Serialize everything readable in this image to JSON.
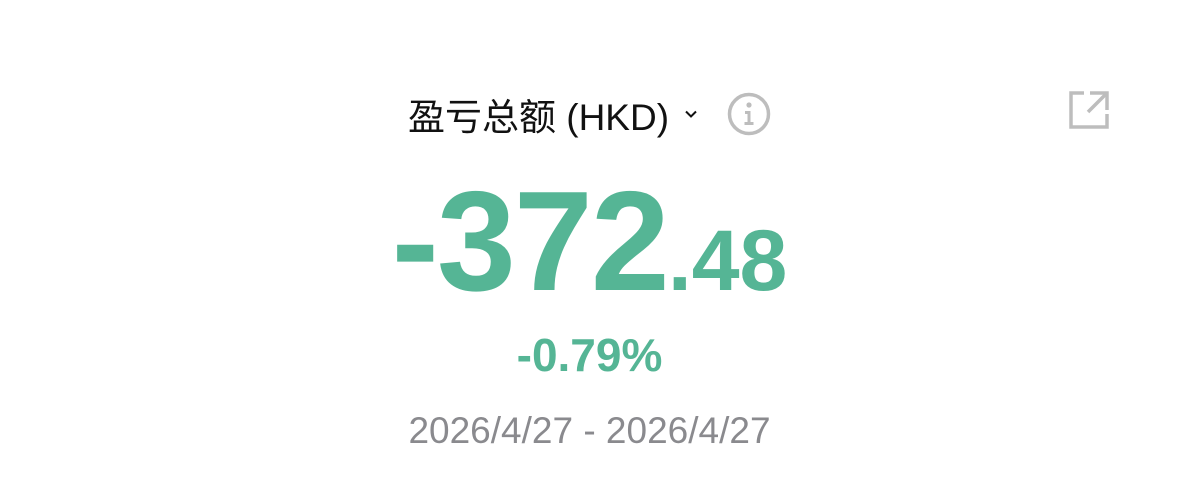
{
  "header": {
    "title": "盈亏总额 (HKD)",
    "dropdown_icon": "chevron-down-icon",
    "info_icon": "info-icon",
    "share_icon": "external-link-icon"
  },
  "summary": {
    "value_integer": "-372",
    "value_decimal": ".48",
    "percent": "-0.79%",
    "date_range": "2026/4/27 - 2026/4/27"
  },
  "colors": {
    "loss": "#55b595",
    "text": "#111111",
    "muted": "#8a8a8e",
    "icon": "#bdbdbd"
  }
}
